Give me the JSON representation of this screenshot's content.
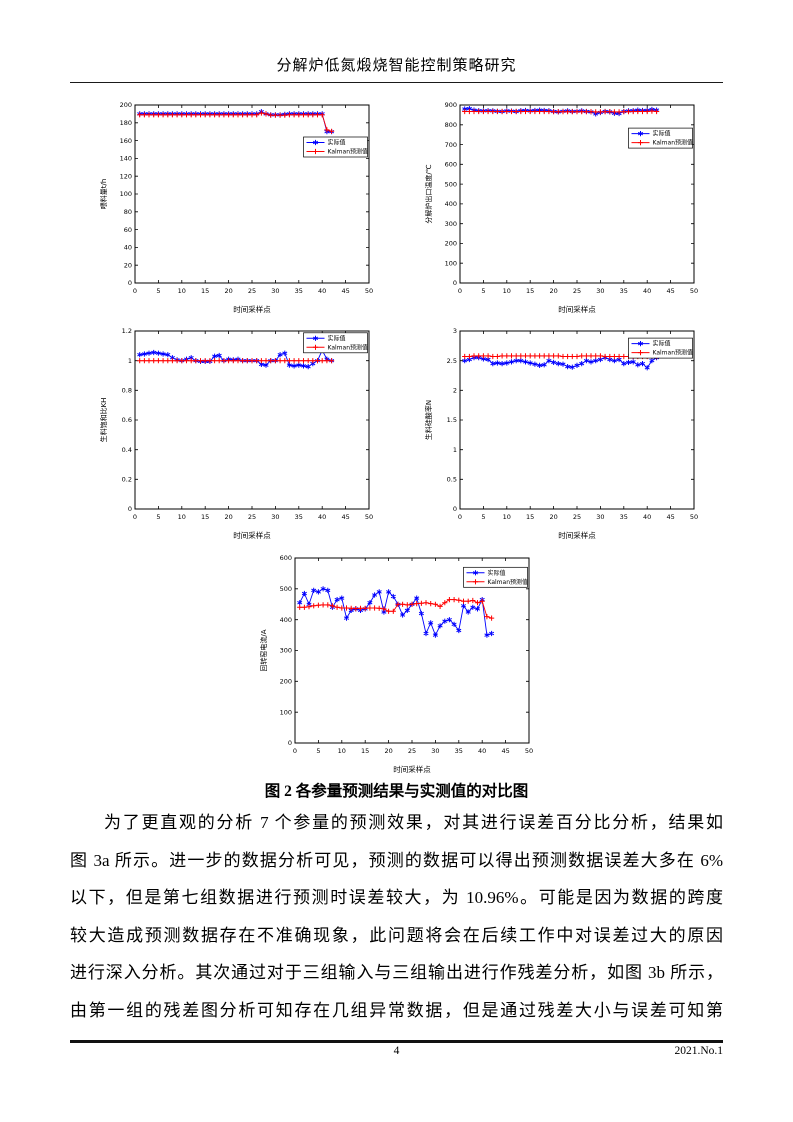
{
  "page": {
    "header_title": "分解炉低氮煅烧智能控制策略研究",
    "figure_caption": "图 2 各参量预测结果与实测值的对比图",
    "paragraph_lines": [
      "为了更直观的分析 7 个参量的预测效果，对其进行误差百分比分析，结果如",
      "图 3a 所示。进一步的数据分析可见，预测的数据可以得出预测数据误差大多在 6%",
      "以下，但是第七组数据进行预测时误差较大，为 10.96%。可能是因为数据的跨度",
      "较大造成预测数据存在不准确现象，此问题将会在后续工作中对误差过大的原因",
      "进行深入分析。其次通过对于三组输入与三组输出进行作残差分析，如图 3b 所示，",
      "由第一组的残差图分析可知存在几组异常数据，但是通过残差大小与误差可知第"
    ],
    "footer": {
      "page_number": "4",
      "issue": "2021.No.1"
    }
  },
  "colors": {
    "actual": "#0000ff",
    "predicted": "#ff0000",
    "axis": "#000000"
  },
  "chart_data": [
    {
      "type": "line",
      "title": "",
      "xlabel": "时间采样点",
      "ylabel": "喂料量t/h",
      "xlim": [
        0,
        50
      ],
      "ylim": [
        0,
        200
      ],
      "xticks": [
        0,
        5,
        10,
        15,
        20,
        25,
        30,
        35,
        40,
        45,
        50
      ],
      "yticks": [
        0,
        20,
        40,
        60,
        80,
        100,
        120,
        140,
        160,
        180,
        200
      ],
      "grid": false,
      "legend_pos": [
        0.72,
        0.18
      ],
      "series": [
        {
          "name": "实际值",
          "color": "#0000ff",
          "marker": "star",
          "values": [
            190,
            190,
            190,
            190,
            190,
            190,
            190,
            190,
            190,
            190,
            190,
            190,
            190,
            190,
            190,
            190,
            190,
            190,
            190,
            190,
            190,
            190,
            190,
            190,
            190,
            190,
            192.5,
            190,
            189,
            189,
            189,
            189.5,
            190,
            190,
            190,
            190,
            190,
            190,
            190,
            190,
            170,
            170
          ]
        },
        {
          "name": "Kalman预测值",
          "color": "#ff0000",
          "marker": "plus",
          "values": [
            189,
            189,
            189,
            189,
            189,
            189,
            189,
            189,
            189,
            189,
            189,
            189,
            189,
            189,
            189,
            189,
            189,
            189,
            189,
            189,
            189,
            189,
            189,
            189,
            189,
            189,
            191,
            190,
            188.5,
            188.5,
            188.5,
            188.5,
            189,
            189,
            189,
            189,
            189,
            189,
            189,
            189,
            172,
            170.5
          ]
        }
      ]
    },
    {
      "type": "line",
      "title": "",
      "xlabel": "时间采样点",
      "ylabel": "分解炉出口温度/℃",
      "xlim": [
        0,
        50
      ],
      "ylim": [
        0,
        900
      ],
      "xticks": [
        0,
        5,
        10,
        15,
        20,
        25,
        30,
        35,
        40,
        45,
        50
      ],
      "yticks": [
        0,
        100,
        200,
        300,
        400,
        500,
        600,
        700,
        800,
        900
      ],
      "grid": false,
      "legend_pos": [
        0.72,
        0.13
      ],
      "series": [
        {
          "name": "实际值",
          "color": "#0000ff",
          "marker": "star",
          "values": [
            880,
            882,
            874,
            871,
            870,
            871,
            870,
            868,
            867,
            870,
            869,
            867,
            871,
            872,
            870,
            872,
            874,
            872,
            871,
            867,
            865,
            868,
            870,
            867,
            868,
            870,
            867,
            865,
            855,
            862,
            867,
            865,
            858,
            857,
            867,
            870,
            871,
            874,
            872,
            873,
            877,
            874
          ]
        },
        {
          "name": "Kalman预测值",
          "color": "#ff0000",
          "marker": "plus",
          "values": [
            867,
            867,
            867,
            867,
            867,
            867,
            867,
            867,
            867,
            867,
            867,
            867,
            867,
            867,
            867,
            867,
            867,
            867,
            867,
            866,
            866,
            866,
            866,
            866,
            866,
            866,
            866,
            866,
            865,
            865,
            866,
            866,
            865,
            865,
            866,
            866,
            867,
            867,
            867,
            867,
            869,
            867
          ]
        }
      ]
    },
    {
      "type": "line",
      "title": "",
      "xlabel": "时间采样点",
      "ylabel": "生料饱和比KH",
      "xlim": [
        0,
        50
      ],
      "ylim": [
        0,
        1.2
      ],
      "xticks": [
        0,
        5,
        10,
        15,
        20,
        25,
        30,
        35,
        40,
        45,
        50
      ],
      "yticks": [
        0,
        0.2,
        0.4,
        0.6,
        0.8,
        1,
        1.2
      ],
      "grid": false,
      "legend_pos": [
        0.72,
        0.01
      ],
      "series": [
        {
          "name": "实际值",
          "color": "#0000ff",
          "marker": "star",
          "values": [
            1.04,
            1.045,
            1.05,
            1.055,
            1.05,
            1.045,
            1.04,
            1.02,
            1.005,
            1.0,
            1.01,
            1.02,
            1.0,
            0.995,
            0.995,
            0.995,
            1.03,
            1.035,
            1.0,
            1.01,
            1.005,
            1.01,
            1.0,
            1.0,
            1.0,
            1.0,
            0.975,
            0.97,
            1.0,
            1.0,
            1.04,
            1.05,
            0.97,
            0.965,
            0.97,
            0.965,
            0.96,
            0.98,
            1.0,
            1.07,
            1.01,
            1.0
          ]
        },
        {
          "name": "Kalman预测值",
          "color": "#ff0000",
          "marker": "plus",
          "values": [
            1.0,
            1.0,
            1.0,
            1.0,
            1.0,
            1.0,
            1.0,
            1.0,
            1.0,
            1.0,
            1.0,
            1.0,
            1.0,
            1.0,
            1.0,
            1.0,
            1.0,
            1.0,
            1.0,
            1.0,
            1.0,
            1.0,
            1.0,
            1.0,
            1.0,
            1.0,
            1.0,
            1.0,
            1.0,
            1.0,
            1.0,
            1.0,
            1.0,
            1.0,
            1.0,
            1.0,
            1.0,
            1.0,
            1.0,
            1.0,
            1.0,
            1.0
          ]
        }
      ]
    },
    {
      "type": "line",
      "title": "",
      "xlabel": "时间采样点",
      "ylabel": "生料硅酸率N",
      "xlim": [
        0,
        50
      ],
      "ylim": [
        0,
        3
      ],
      "xticks": [
        0,
        5,
        10,
        15,
        20,
        25,
        30,
        35,
        40,
        45,
        50
      ],
      "yticks": [
        0,
        0.5,
        1,
        1.5,
        2,
        2.5,
        3
      ],
      "grid": false,
      "legend_pos": [
        0.72,
        0.04
      ],
      "series": [
        {
          "name": "实际值",
          "color": "#0000ff",
          "marker": "star",
          "values": [
            2.5,
            2.52,
            2.55,
            2.55,
            2.53,
            2.52,
            2.45,
            2.46,
            2.45,
            2.46,
            2.48,
            2.5,
            2.5,
            2.48,
            2.46,
            2.44,
            2.42,
            2.43,
            2.5,
            2.47,
            2.45,
            2.44,
            2.4,
            2.39,
            2.42,
            2.45,
            2.5,
            2.48,
            2.5,
            2.52,
            2.55,
            2.52,
            2.5,
            2.52,
            2.45,
            2.47,
            2.48,
            2.43,
            2.45,
            2.38,
            2.5,
            2.55
          ]
        },
        {
          "name": "Kalman预测值",
          "color": "#ff0000",
          "marker": "plus",
          "values": [
            2.57,
            2.57,
            2.58,
            2.58,
            2.58,
            2.58,
            2.57,
            2.57,
            2.58,
            2.58,
            2.58,
            2.58,
            2.58,
            2.58,
            2.58,
            2.58,
            2.58,
            2.58,
            2.58,
            2.58,
            2.58,
            2.57,
            2.57,
            2.57,
            2.57,
            2.58,
            2.58,
            2.58,
            2.58,
            2.58,
            2.57,
            2.57,
            2.57,
            2.57,
            2.57,
            2.57,
            2.57,
            2.57,
            2.57,
            2.57,
            2.58,
            2.57
          ]
        }
      ]
    },
    {
      "type": "line",
      "title": "",
      "xlabel": "时间采样点",
      "ylabel": "回转窑电流/A",
      "xlim": [
        0,
        50
      ],
      "ylim": [
        0,
        600
      ],
      "xticks": [
        0,
        5,
        10,
        15,
        20,
        25,
        30,
        35,
        40,
        45,
        50
      ],
      "yticks": [
        0,
        100,
        200,
        300,
        400,
        500,
        600
      ],
      "grid": false,
      "legend_pos": [
        0.72,
        0.05
      ],
      "series": [
        {
          "name": "实际值",
          "color": "#0000ff",
          "marker": "star",
          "values": [
            455,
            485,
            450,
            495,
            490,
            500,
            495,
            440,
            465,
            470,
            405,
            430,
            435,
            430,
            435,
            455,
            480,
            490,
            425,
            490,
            475,
            450,
            415,
            430,
            450,
            470,
            420,
            355,
            390,
            350,
            380,
            395,
            400,
            385,
            365,
            445,
            425,
            440,
            435,
            465,
            350,
            355
          ]
        },
        {
          "name": "Kalman预测值",
          "color": "#ff0000",
          "marker": "plus",
          "values": [
            440,
            440,
            442,
            445,
            447,
            448,
            448,
            445,
            440,
            438,
            438,
            437,
            436,
            437,
            437,
            438,
            438,
            437,
            435,
            427,
            427,
            450,
            450,
            448,
            450,
            452,
            453,
            455,
            452,
            450,
            443,
            455,
            465,
            465,
            463,
            460,
            460,
            462,
            455,
            460,
            410,
            405
          ]
        }
      ]
    }
  ]
}
